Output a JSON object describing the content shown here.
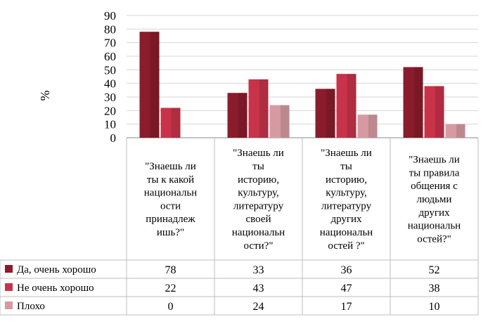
{
  "chart_data": {
    "type": "bar",
    "ylabel": "%",
    "ylim": [
      0,
      90
    ],
    "yticks": [
      0,
      10,
      20,
      30,
      40,
      50,
      60,
      70,
      80,
      90
    ],
    "grid": true,
    "categories": [
      "\"Знаешь ли ты к какой национальности принадлежишь?\"",
      "\"Знаешь ли ты историю, культуру, литературу своей национальности?\"",
      "\"Знаешь ли ты историю, культуру, литературу других национальностей ?\"",
      "\"Знаешь ли ты правила общения с людьми других национальностей?\""
    ],
    "category_lines": [
      [
        "\"Знаешь ли",
        "ты к какой",
        "национальн",
        "ости",
        "принадлеж",
        "ишь?\""
      ],
      [
        "\"Знаешь ли",
        "ты",
        "историю,",
        "культуру,",
        "литературу",
        "своей",
        "национальн",
        "ости?\""
      ],
      [
        "\"Знаешь ли",
        "ты",
        "историю,",
        "культуру,",
        "литературу",
        "других",
        "национальн",
        "остей ?\""
      ],
      [
        "\"Знаешь ли",
        "ты правила",
        "общения с",
        "людьми",
        "других",
        "национальн",
        "остей?\""
      ]
    ],
    "series": [
      {
        "name": "Да, очень хорошо",
        "values": [
          78,
          33,
          36,
          52
        ],
        "color": "#8b1c2c"
      },
      {
        "name": "Не очень хорошо",
        "values": [
          22,
          43,
          47,
          38
        ],
        "color": "#c8334a"
      },
      {
        "name": "Плохо",
        "values": [
          0,
          24,
          17,
          10
        ],
        "color": "#d89aa2"
      }
    ],
    "legend_position": "table-left"
  }
}
